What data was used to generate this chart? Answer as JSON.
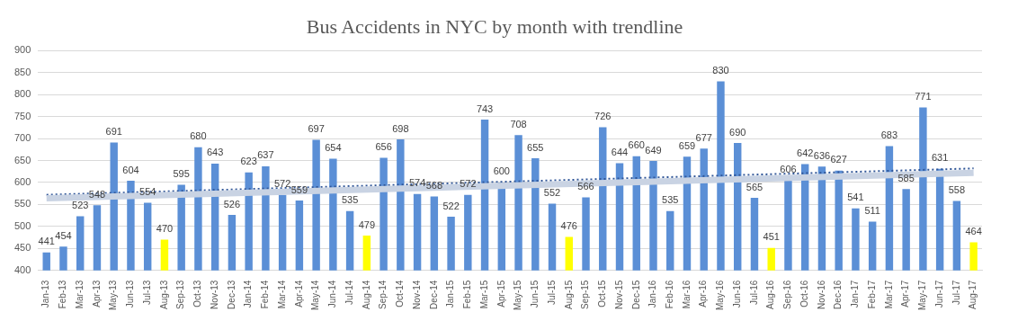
{
  "chart_data": {
    "type": "bar",
    "title": "Bus Accidents in NYC by month with trendline",
    "categories": [
      "Jan-13",
      "Feb-13",
      "Mar-13",
      "Apr-13",
      "May-13",
      "Jun-13",
      "Jul-13",
      "Aug-13",
      "Sep-13",
      "Oct-13",
      "Nov-13",
      "Dec-13",
      "Jan-14",
      "Feb-14",
      "Mar-14",
      "Apr-14",
      "May-14",
      "Jun-14",
      "Jul-14",
      "Aug-14",
      "Sep-14",
      "Oct-14",
      "Nov-14",
      "Dec-14",
      "Jan-15",
      "Feb-15",
      "Mar-15",
      "Apr-15",
      "May-15",
      "Jun-15",
      "Jul-15",
      "Aug-15",
      "Sep-15",
      "Oct-15",
      "Nov-15",
      "Dec-15",
      "Jan-16",
      "Feb-16",
      "Mar-16",
      "Apr-16",
      "May-16",
      "Jun-16",
      "Jul-16",
      "Aug-16",
      "Sep-16",
      "Oct-16",
      "Nov-16",
      "Dec-16",
      "Jan-17",
      "Feb-17",
      "Mar-17",
      "Apr-17",
      "May-17",
      "Jun-17",
      "Jul-17",
      "Aug-17"
    ],
    "series": [
      {
        "values": [
          441,
          454,
          523,
          548,
          691,
          604,
          554,
          470,
          595,
          680,
          643,
          526,
          623,
          637,
          572,
          559,
          697,
          654,
          535,
          479,
          656,
          698,
          574,
          568,
          522,
          572,
          743,
          600,
          708,
          655,
          552,
          476,
          566,
          726,
          644,
          660,
          649,
          535,
          659,
          677,
          830,
          690,
          565,
          451,
          606,
          642,
          636,
          627,
          541,
          511,
          683,
          585,
          771,
          631,
          558,
          464
        ],
        "value_labels": [
          "441",
          "454",
          "523",
          "548",
          "691",
          "604",
          "554",
          "470",
          "595",
          "680",
          "643",
          "526",
          "623",
          "637",
          "572",
          "559",
          "697",
          "654",
          "535",
          "479",
          "656",
          "698",
          "574",
          "568",
          "522",
          "572",
          "743",
          "600",
          "708",
          "655",
          "552",
          "476",
          "566",
          "726",
          "644",
          "660",
          "649",
          "535",
          "659",
          "677",
          "830",
          "690",
          "565",
          "451",
          "606",
          "642",
          "636",
          "627",
          "541",
          "511",
          "683",
          "585",
          "771",
          "631",
          "558",
          "464"
        ],
        "colors": [
          "#5b8fd6",
          "#5b8fd6",
          "#5b8fd6",
          "#5b8fd6",
          "#5b8fd6",
          "#5b8fd6",
          "#5b8fd6",
          "#ffff00",
          "#5b8fd6",
          "#5b8fd6",
          "#5b8fd6",
          "#5b8fd6",
          "#5b8fd6",
          "#5b8fd6",
          "#5b8fd6",
          "#5b8fd6",
          "#5b8fd6",
          "#5b8fd6",
          "#5b8fd6",
          "#ffff00",
          "#5b8fd6",
          "#5b8fd6",
          "#5b8fd6",
          "#5b8fd6",
          "#5b8fd6",
          "#5b8fd6",
          "#5b8fd6",
          "#5b8fd6",
          "#5b8fd6",
          "#5b8fd6",
          "#5b8fd6",
          "#ffff00",
          "#5b8fd6",
          "#5b8fd6",
          "#5b8fd6",
          "#5b8fd6",
          "#5b8fd6",
          "#5b8fd6",
          "#5b8fd6",
          "#5b8fd6",
          "#5b8fd6",
          "#5b8fd6",
          "#5b8fd6",
          "#ffff00",
          "#5b8fd6",
          "#5b8fd6",
          "#5b8fd6",
          "#5b8fd6",
          "#5b8fd6",
          "#5b8fd6",
          "#5b8fd6",
          "#5b8fd6",
          "#5b8fd6",
          "#5b8fd6",
          "#5b8fd6",
          "#ffff00"
        ]
      },
      {
        "type": "line",
        "x": [
          "Jan-13",
          "Aug-17"
        ],
        "values": [
          564,
          622
        ],
        "color": "#c9d3e3",
        "line_style": "solid"
      },
      {
        "type": "line",
        "x": [
          "Jan-13",
          "Aug-17"
        ],
        "values": [
          572,
          632
        ],
        "color": "#2f5597",
        "line_style": "dotted"
      }
    ],
    "ylim": [
      400,
      900
    ],
    "yticks": [
      400,
      450,
      500,
      550,
      600,
      650,
      700,
      750,
      800,
      850,
      900
    ],
    "grid": "y",
    "legend": false
  }
}
